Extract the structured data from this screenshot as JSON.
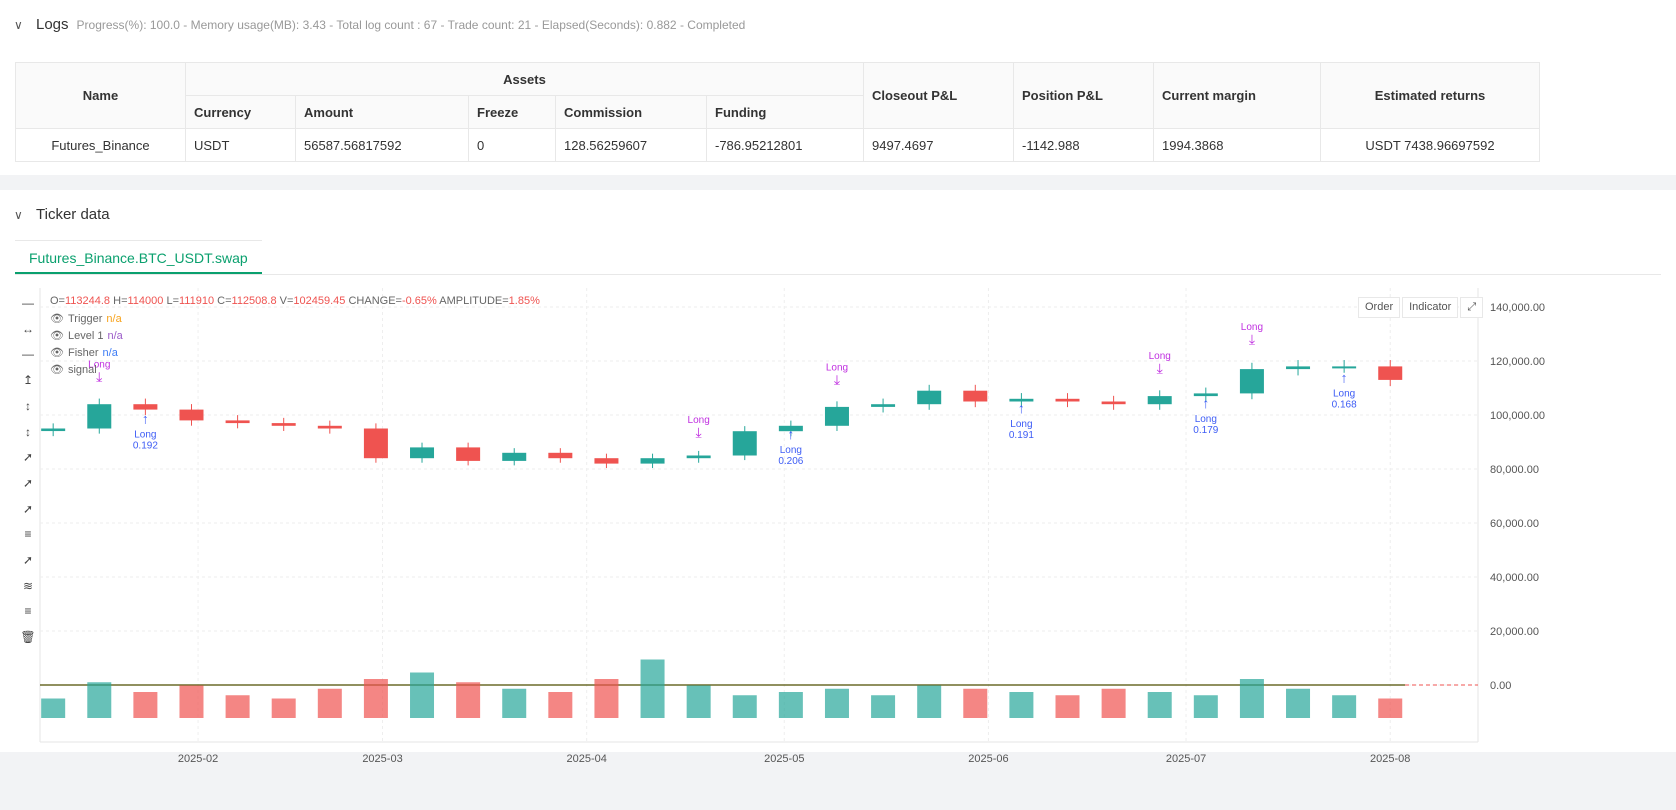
{
  "logs": {
    "title": "Logs",
    "summary": "Progress(%): 100.0  - Memory usage(MB): 3.43 - Total log count : 67 - Trade count:  21 - Elapsed(Seconds): 0.882 - Completed"
  },
  "table": {
    "headers": {
      "name": "Name",
      "assets": "Assets",
      "closeout": "Closeout P&L",
      "position": "Position P&L",
      "margin": "Current margin",
      "returns": "Estimated returns"
    },
    "sub": [
      "Currency",
      "Amount",
      "Freeze",
      "Commission",
      "Funding"
    ],
    "row": {
      "name": "Futures_Binance",
      "currency": "USDT",
      "amount": "56587.56817592",
      "freeze": "0",
      "commission": "128.56259607",
      "funding": "-786.95212801",
      "closeout": "9497.4697",
      "position": "-1142.988",
      "margin": "1994.3868",
      "returns": "USDT 7438.96697592"
    }
  },
  "ticker": {
    "title": "Ticker data",
    "tab": "Futures_Binance.BTC_USDT.swap",
    "ohlc": {
      "o_label": "O=",
      "o": "113244.8",
      "h_label": " H=",
      "h": "114000",
      "l_label": " L=",
      "l": "111910",
      "c_label": " C=",
      "c": "112508.8",
      "v_label": " V=",
      "v": "102459.45",
      "ch_label": " CHANGE=",
      "ch": "-0.65%",
      "am_label": " AMPLITUDE=",
      "am": "1.85%"
    },
    "indicators": [
      {
        "name": "Trigger",
        "value": "n/a",
        "color": "#f7a21b"
      },
      {
        "name": "Level 1",
        "value": "n/a",
        "color": "#9c5cc9"
      },
      {
        "name": "Fisher",
        "value": "n/a",
        "color": "#3d7cf5"
      },
      {
        "name": "signal",
        "value": "",
        "color": "#666"
      }
    ],
    "buttons": [
      "Order",
      "Indicator"
    ]
  },
  "chart_data": {
    "type": "candlestick",
    "up_color": "#26a69a",
    "down_color": "#ef5350",
    "ylim": [
      0,
      150000
    ],
    "yticks": [
      0,
      20000,
      40000,
      60000,
      80000,
      100000,
      120000,
      140000
    ],
    "ytick_labels": [
      "0.00",
      "20,000.00",
      "40,000.00",
      "60,000.00",
      "80,000.00",
      "100,000.00",
      "120,000.00",
      "140,000.00"
    ],
    "xticks": [
      "2025-02",
      "2025-03",
      "2025-04",
      "2025-05",
      "2025-06",
      "2025-07",
      "2025-08"
    ],
    "dates": [
      "2025-01-10",
      "2025-01-17",
      "2025-01-24",
      "2025-01-31",
      "2025-02-07",
      "2025-02-14",
      "2025-02-21",
      "2025-02-28",
      "2025-03-07",
      "2025-03-14",
      "2025-03-21",
      "2025-03-28",
      "2025-04-04",
      "2025-04-11",
      "2025-04-18",
      "2025-04-25",
      "2025-05-02",
      "2025-05-09",
      "2025-05-16",
      "2025-05-23",
      "2025-05-30",
      "2025-06-06",
      "2025-06-13",
      "2025-06-20",
      "2025-06-27",
      "2025-07-04",
      "2025-07-11",
      "2025-07-18",
      "2025-07-25",
      "2025-08-01"
    ],
    "close": [
      95000,
      104000,
      102000,
      98000,
      97000,
      96000,
      95000,
      84000,
      88000,
      83000,
      86000,
      84000,
      82000,
      84000,
      85000,
      94000,
      96000,
      103000,
      104000,
      109000,
      105000,
      106000,
      105000,
      104000,
      107000,
      108000,
      117000,
      118000,
      118000,
      113000
    ],
    "volume": [
      30,
      55,
      40,
      50,
      35,
      30,
      45,
      60,
      70,
      55,
      45,
      40,
      60,
      90,
      50,
      35,
      40,
      45,
      35,
      50,
      45,
      40,
      35,
      45,
      40,
      35,
      60,
      45,
      35,
      30
    ],
    "signals": [
      {
        "date": "2025-01-17",
        "label": "Long",
        "kind": "exit"
      },
      {
        "date": "2025-01-24",
        "label": "Long",
        "qty": "0.192",
        "kind": "entry"
      },
      {
        "date": "2025-04-18",
        "label": "Long",
        "kind": "exit"
      },
      {
        "date": "2025-05-02",
        "label": "Long",
        "qty": "0.206",
        "kind": "entry"
      },
      {
        "date": "2025-05-09",
        "label": "Long",
        "kind": "exit"
      },
      {
        "date": "2025-06-06",
        "label": "Long",
        "qty": "0.191",
        "kind": "entry"
      },
      {
        "date": "2025-06-27",
        "label": "Long",
        "kind": "exit"
      },
      {
        "date": "2025-07-04",
        "label": "Long",
        "qty": "0.179",
        "kind": "entry"
      },
      {
        "date": "2025-07-11",
        "label": "Long",
        "kind": "exit"
      },
      {
        "date": "2025-07-25",
        "label": "Long",
        "qty": "0.168",
        "kind": "entry"
      }
    ]
  }
}
